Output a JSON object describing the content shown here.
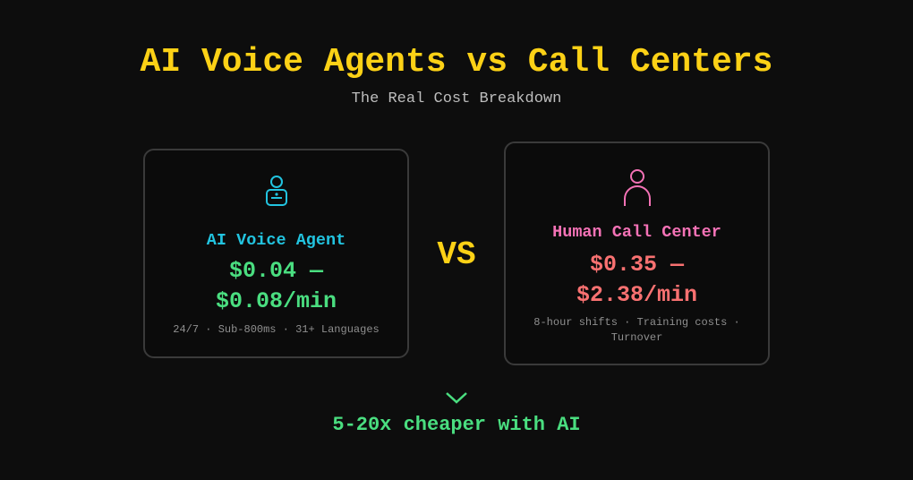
{
  "header": {
    "title": "AI Voice Agents vs Call Centers",
    "subtitle": "The Real Cost Breakdown"
  },
  "cards": [
    {
      "icon": "robot-agent-icon",
      "title": "AI Voice Agent",
      "price_line1": "$0.04 —",
      "price_line2": "$0.08/min",
      "details": "24/7 · Sub-800ms · 31+ Languages",
      "title_color": "#22c4e0",
      "price_color": "#4ade80"
    },
    {
      "icon": "person-icon",
      "title": "Human Call Center",
      "price_line1": "$0.35 —",
      "price_line2": "$2.38/min",
      "details": "8-hour shifts · Training costs · Turnover",
      "title_color": "#f472b6",
      "price_color": "#f87171"
    }
  ],
  "vs_label": "VS",
  "footer": {
    "icon": "chevron-down-icon",
    "text": "5-20x cheaper with AI"
  },
  "colors": {
    "background": "#0d0d0d",
    "accent": "#fcd116"
  }
}
